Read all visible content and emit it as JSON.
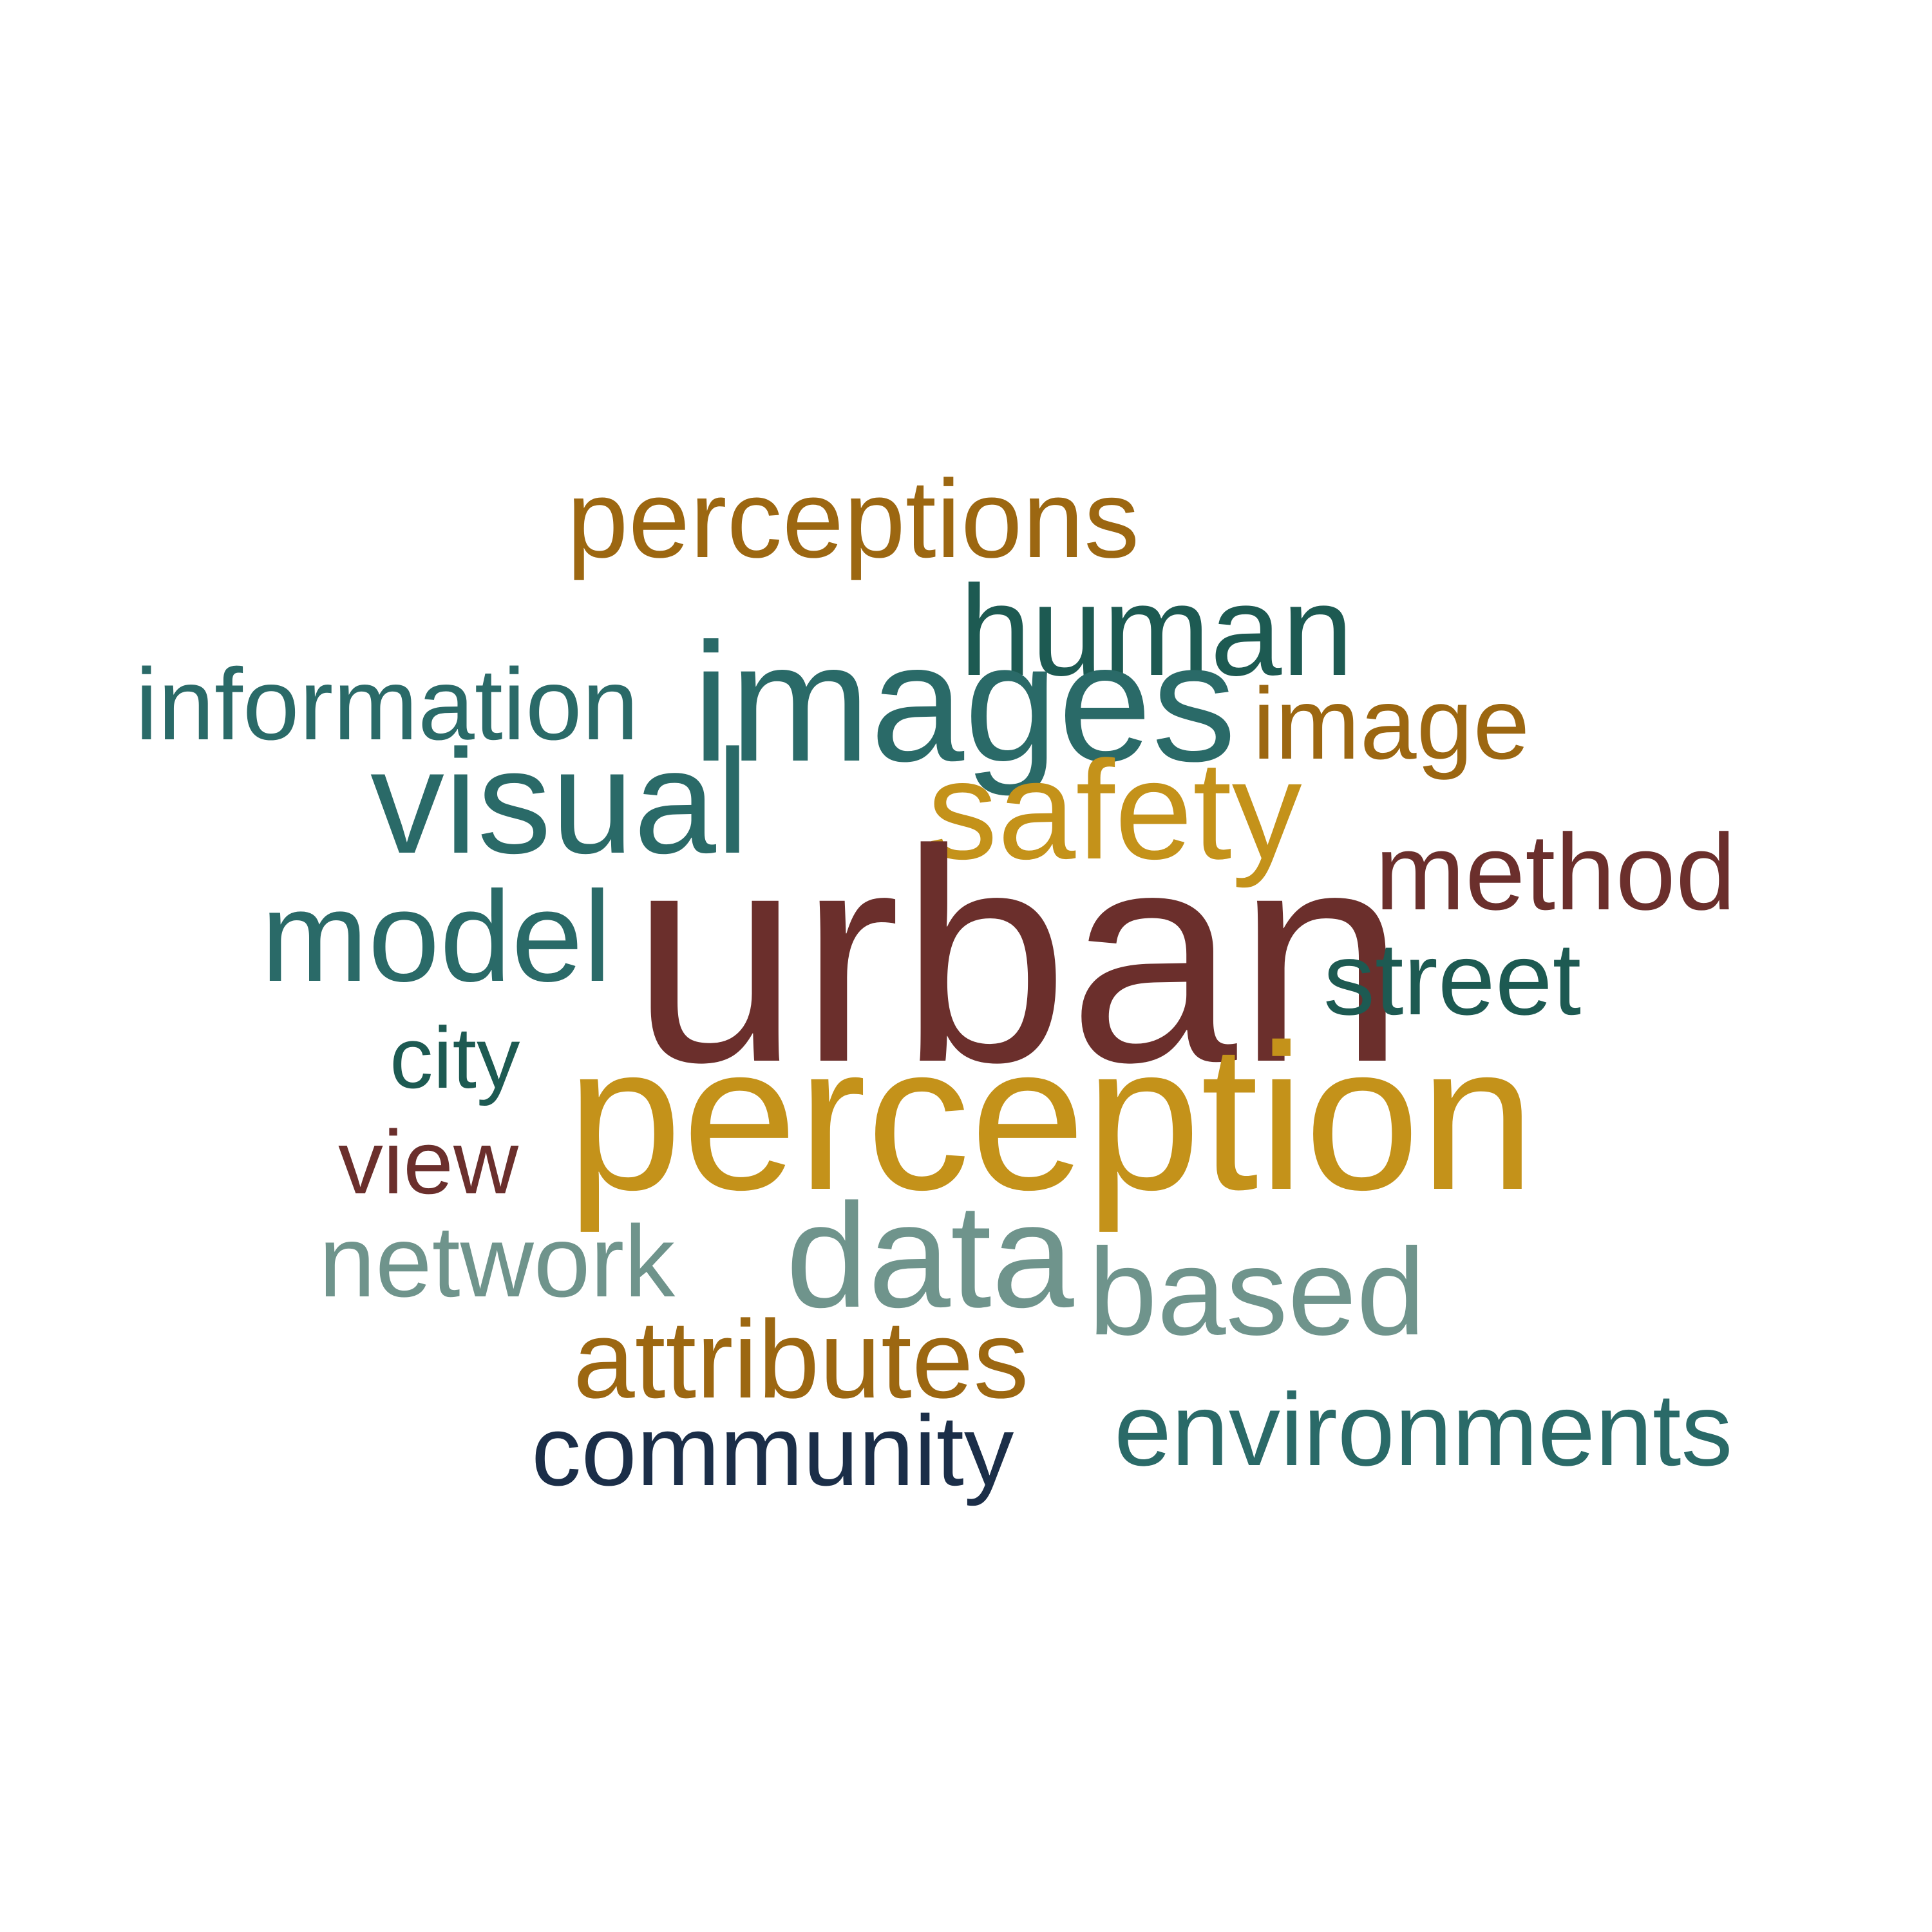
{
  "palette": {
    "teal": "#2a6a68",
    "dark_teal": "#1d5a52",
    "gold": "#c4921a",
    "bronze": "#9c6711",
    "maroon": "#6b2f2c",
    "sage": "#6f948c",
    "navy": "#1b2e48"
  },
  "words": {
    "perceptions": {
      "text": "perceptions",
      "color": "#9c6711"
    },
    "human": {
      "text": "human",
      "color": "#1d5a52"
    },
    "information": {
      "text": "information",
      "color": "#2a6a68"
    },
    "images": {
      "text": "images",
      "color": "#2a6a68"
    },
    "image": {
      "text": "image",
      "color": "#9c6711"
    },
    "visual": {
      "text": "visual",
      "color": "#2a6a68"
    },
    "safety": {
      "text": "safety",
      "color": "#c4921a"
    },
    "method": {
      "text": "method",
      "color": "#6b2f2c"
    },
    "model": {
      "text": "model",
      "color": "#2a6a68"
    },
    "urban": {
      "text": "urban",
      "color": "#6b2f2c"
    },
    "street": {
      "text": "street",
      "color": "#1d5a52"
    },
    "city": {
      "text": "city",
      "color": "#1d5a52"
    },
    "perception": {
      "text": "perception",
      "color": "#c4921a"
    },
    "view": {
      "text": "view",
      "color": "#6b2f2c"
    },
    "network": {
      "text": "network",
      "color": "#6f948c"
    },
    "data": {
      "text": "data",
      "color": "#6f948c"
    },
    "based": {
      "text": "based",
      "color": "#6f948c"
    },
    "attributes": {
      "text": "attributes",
      "color": "#9c6711"
    },
    "community": {
      "text": "community",
      "color": "#1b2e48"
    },
    "environments": {
      "text": "environments",
      "color": "#2a6a68"
    }
  }
}
